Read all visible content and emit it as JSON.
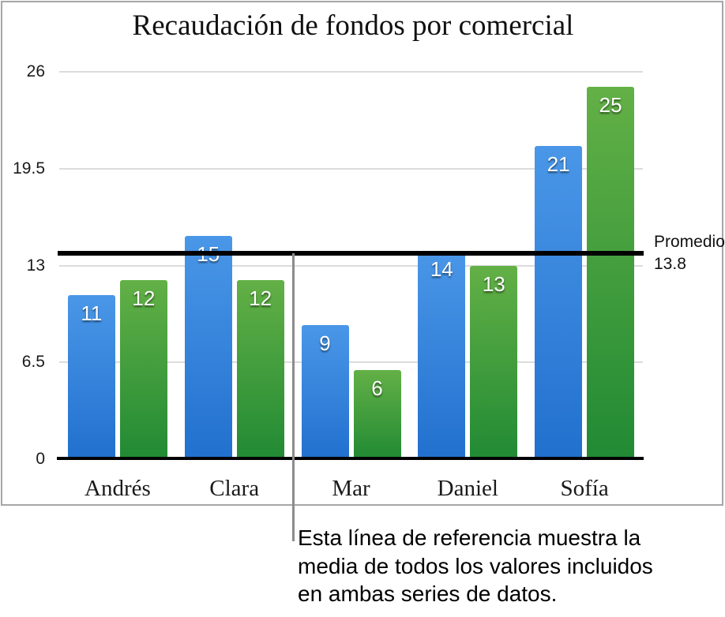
{
  "title": "Recaudación de fondos por comercial",
  "chart_data": {
    "type": "bar",
    "title": "Recaudación de fondos por comercial",
    "categories": [
      "Andrés",
      "Clara",
      "Mar",
      "Daniel",
      "Sofía"
    ],
    "series": [
      {
        "name": "azul",
        "color_top": "#4a97e8",
        "color_bottom": "#2170ce",
        "values": [
          11,
          15,
          9,
          14,
          21
        ]
      },
      {
        "name": "verde",
        "color_top": "#63b046",
        "color_bottom": "#218a34",
        "values": [
          12,
          12,
          6,
          13,
          25
        ]
      }
    ],
    "yticks": [
      0,
      6.5,
      13,
      19.5,
      26
    ],
    "ylim": [
      0,
      26
    ],
    "xlabel": "",
    "ylabel": "",
    "grid": true,
    "legend": "none",
    "value_labels": true,
    "value_label_color": "#ffffff",
    "gridline_color": "#dcdcdc",
    "axis_color": "#000000",
    "reference_line": {
      "value": 13.8,
      "color": "#000000",
      "label_line1": "Promedio",
      "label_line2": "13.8"
    }
  },
  "annotation": {
    "lines": [
      "Esta línea de referencia muestra la",
      "media de todos los valores incluidos",
      "en ambas series de datos."
    ]
  }
}
